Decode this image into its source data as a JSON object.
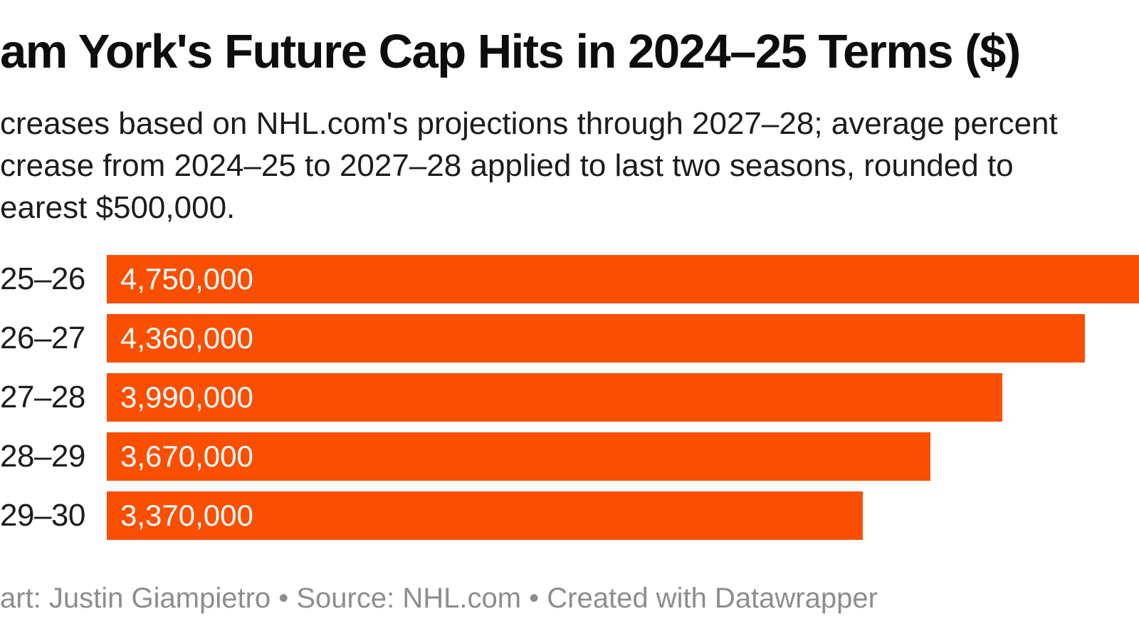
{
  "title": "am York's Future Cap Hits in 2024–25 Terms ($)",
  "subtitle_lines": [
    "creases based on NHL.com's projections through 2027–28; average percent",
    "crease from 2024–25 to 2027–28 applied to last two seasons, rounded to",
    "earest $500,000."
  ],
  "footer": "art: Justin Giampietro • Source: NHL.com • Created with Datawrapper",
  "colors": {
    "background": "#ffffff",
    "title": "#0d0d0d",
    "subtitle": "#1c1c1c",
    "label": "#1d1d1d",
    "bar": "#fa4e00",
    "value_text": "#ffffff",
    "footer": "#8d8d8d"
  },
  "chart_data": {
    "type": "bar",
    "orientation": "horizontal",
    "title": "am York's Future Cap Hits in 2024–25 Terms ($)",
    "categories": [
      "25–26",
      "26–27",
      "27–28",
      "28–29",
      "29–30"
    ],
    "values": [
      4750000,
      4360000,
      3990000,
      3670000,
      3370000
    ],
    "value_labels": [
      "4,750,000",
      "4,360,000",
      "3,990,000",
      "3,670,000",
      "3,370,000"
    ],
    "value_label_position": "inside-start",
    "grid": false,
    "legend": false,
    "axis_hidden": true,
    "visible_track_value": 4600000,
    "first_bar_clipped_at_right_edge": true
  }
}
